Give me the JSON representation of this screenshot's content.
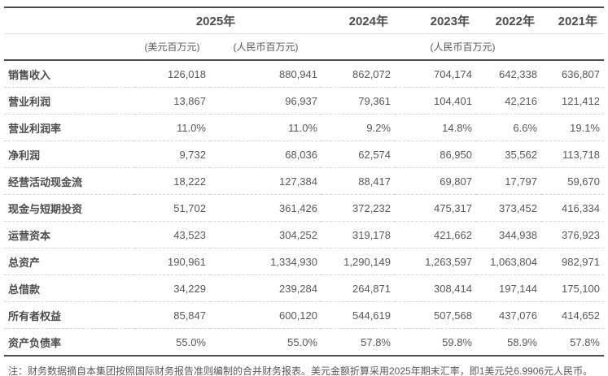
{
  "chart_data": {
    "type": "table",
    "years": [
      "2025年",
      "2024年",
      "2023年",
      "2022年",
      "2021年"
    ],
    "units": {
      "usd_2025": "(美元百万元)",
      "rmb_2025": "(人民币百万元)",
      "rmb_prior": "(人民币百万元)"
    },
    "columns": [
      "",
      "2025年(美元百万元)",
      "2025年(人民币百万元)",
      "2024年(人民币百万元)",
      "2023年(人民币百万元)",
      "2022年(人民币百万元)",
      "2021年(人民币百万元)"
    ],
    "rows": [
      {
        "label": "销售收入",
        "values": [
          "126,018",
          "880,941",
          "862,072",
          "704,174",
          "642,338",
          "636,807"
        ]
      },
      {
        "label": "营业利润",
        "values": [
          "13,867",
          "96,937",
          "79,361",
          "104,401",
          "42,216",
          "121,412"
        ]
      },
      {
        "label": "营业利润率",
        "values": [
          "11.0%",
          "11.0%",
          "9.2%",
          "14.8%",
          "6.6%",
          "19.1%"
        ]
      },
      {
        "label": "净利润",
        "values": [
          "9,732",
          "68,036",
          "62,574",
          "86,950",
          "35,562",
          "113,718"
        ]
      },
      {
        "label": "经营活动现金流",
        "values": [
          "18,222",
          "127,384",
          "88,417",
          "69,807",
          "17,797",
          "59,670"
        ]
      },
      {
        "label": "现金与短期投资",
        "values": [
          "51,702",
          "361,426",
          "372,232",
          "475,317",
          "373,452",
          "416,334"
        ]
      },
      {
        "label": "运营资本",
        "values": [
          "43,523",
          "304,252",
          "319,178",
          "421,662",
          "344,938",
          "376,923"
        ]
      },
      {
        "label": "总资产",
        "values": [
          "190,961",
          "1,334,930",
          "1,290,149",
          "1,263,597",
          "1,063,804",
          "982,971"
        ]
      },
      {
        "label": "总借款",
        "values": [
          "34,229",
          "239,284",
          "264,871",
          "308,414",
          "197,144",
          "175,100"
        ]
      },
      {
        "label": "所有者权益",
        "values": [
          "85,847",
          "600,120",
          "544,619",
          "507,568",
          "437,076",
          "414,652"
        ]
      },
      {
        "label": "资产负债率",
        "values": [
          "55.0%",
          "55.0%",
          "57.8%",
          "59.8%",
          "58.9%",
          "57.8%"
        ]
      }
    ],
    "note": "注：财务数据摘自本集团按照国际财务报告准则编制的合并财务报表。美元金额折算采用2025年期末汇率，即1美元兑6.9906元人民币。",
    "colors": {
      "heavy_border": "#4d4d4d",
      "light_border": "#e4e4e4",
      "dashed_separator": "#d6d6d6",
      "header_text": "#4d4d4d",
      "value_text": "#595959",
      "background": "#ffffff"
    }
  }
}
